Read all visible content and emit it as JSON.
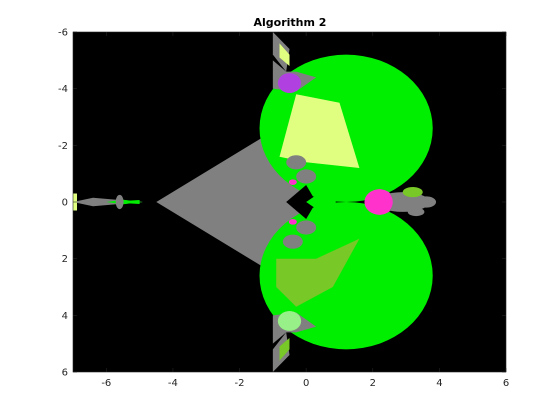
{
  "chart_data": {
    "type": "heatmap",
    "title": "Algorithm 2",
    "xlabel": "",
    "ylabel": "",
    "xlim": [
      -7,
      6
    ],
    "ylim": [
      -6,
      6
    ],
    "y_axis_reversed": true,
    "x_ticks": [
      -6,
      -4,
      -2,
      0,
      2,
      4,
      6
    ],
    "y_ticks": [
      -6,
      -4,
      -2,
      0,
      2,
      4,
      6
    ],
    "grid": false,
    "legend": "none",
    "colors": {
      "background": "#000000",
      "gray": "#808080",
      "bright_green": "#00ee00",
      "yellow_green": "#e0ff80",
      "olive_green": "#78c828",
      "light_green": "#98f088",
      "magenta": "#ff33cc",
      "purple": "#b040e0"
    },
    "regions": [
      {
        "color": "bright_green",
        "shape": "large upper lobe",
        "center": [
          1.2,
          -2.6
        ],
        "radius": 2.6
      },
      {
        "color": "bright_green",
        "shape": "large lower lobe",
        "center": [
          1.2,
          2.6
        ],
        "radius": 2.6
      },
      {
        "color": "yellow_green",
        "shape": "upper wedge",
        "points": [
          [
            -0.3,
            -3.8
          ],
          [
            1.0,
            -3.5
          ],
          [
            1.6,
            -1.2
          ],
          [
            0.0,
            -1.4
          ],
          [
            -0.8,
            -1.6
          ]
        ]
      },
      {
        "color": "olive_green",
        "shape": "lower wedge",
        "points": [
          [
            -0.9,
            2.0
          ],
          [
            0.3,
            2.0
          ],
          [
            1.6,
            1.3
          ],
          [
            0.8,
            3.0
          ],
          [
            -0.3,
            3.7
          ],
          [
            -0.9,
            3.0
          ]
        ]
      },
      {
        "color": "gray",
        "shape": "central cusp body",
        "points": [
          [
            -4.5,
            0.0
          ],
          [
            -1.0,
            -2.5
          ],
          [
            -0.4,
            -3.8
          ],
          [
            0.0,
            -1.2
          ],
          [
            0.0,
            1.2
          ],
          [
            -0.4,
            3.8
          ],
          [
            -1.0,
            2.5
          ]
        ]
      },
      {
        "color": "bright_green",
        "shape": "left spike",
        "points": [
          [
            -6.0,
            0.0
          ],
          [
            -5.0,
            -0.07
          ],
          [
            -5.0,
            0.07
          ]
        ]
      },
      {
        "color": "purple",
        "shape": "top blob",
        "center": [
          -0.5,
          -4.2
        ],
        "radius": 0.35
      },
      {
        "color": "light_green",
        "shape": "bottom blob",
        "center": [
          -0.5,
          4.2
        ],
        "radius": 0.35
      },
      {
        "color": "magenta",
        "shape": "right cluster",
        "center": [
          2.2,
          0.0
        ],
        "radius": 0.45
      }
    ]
  }
}
